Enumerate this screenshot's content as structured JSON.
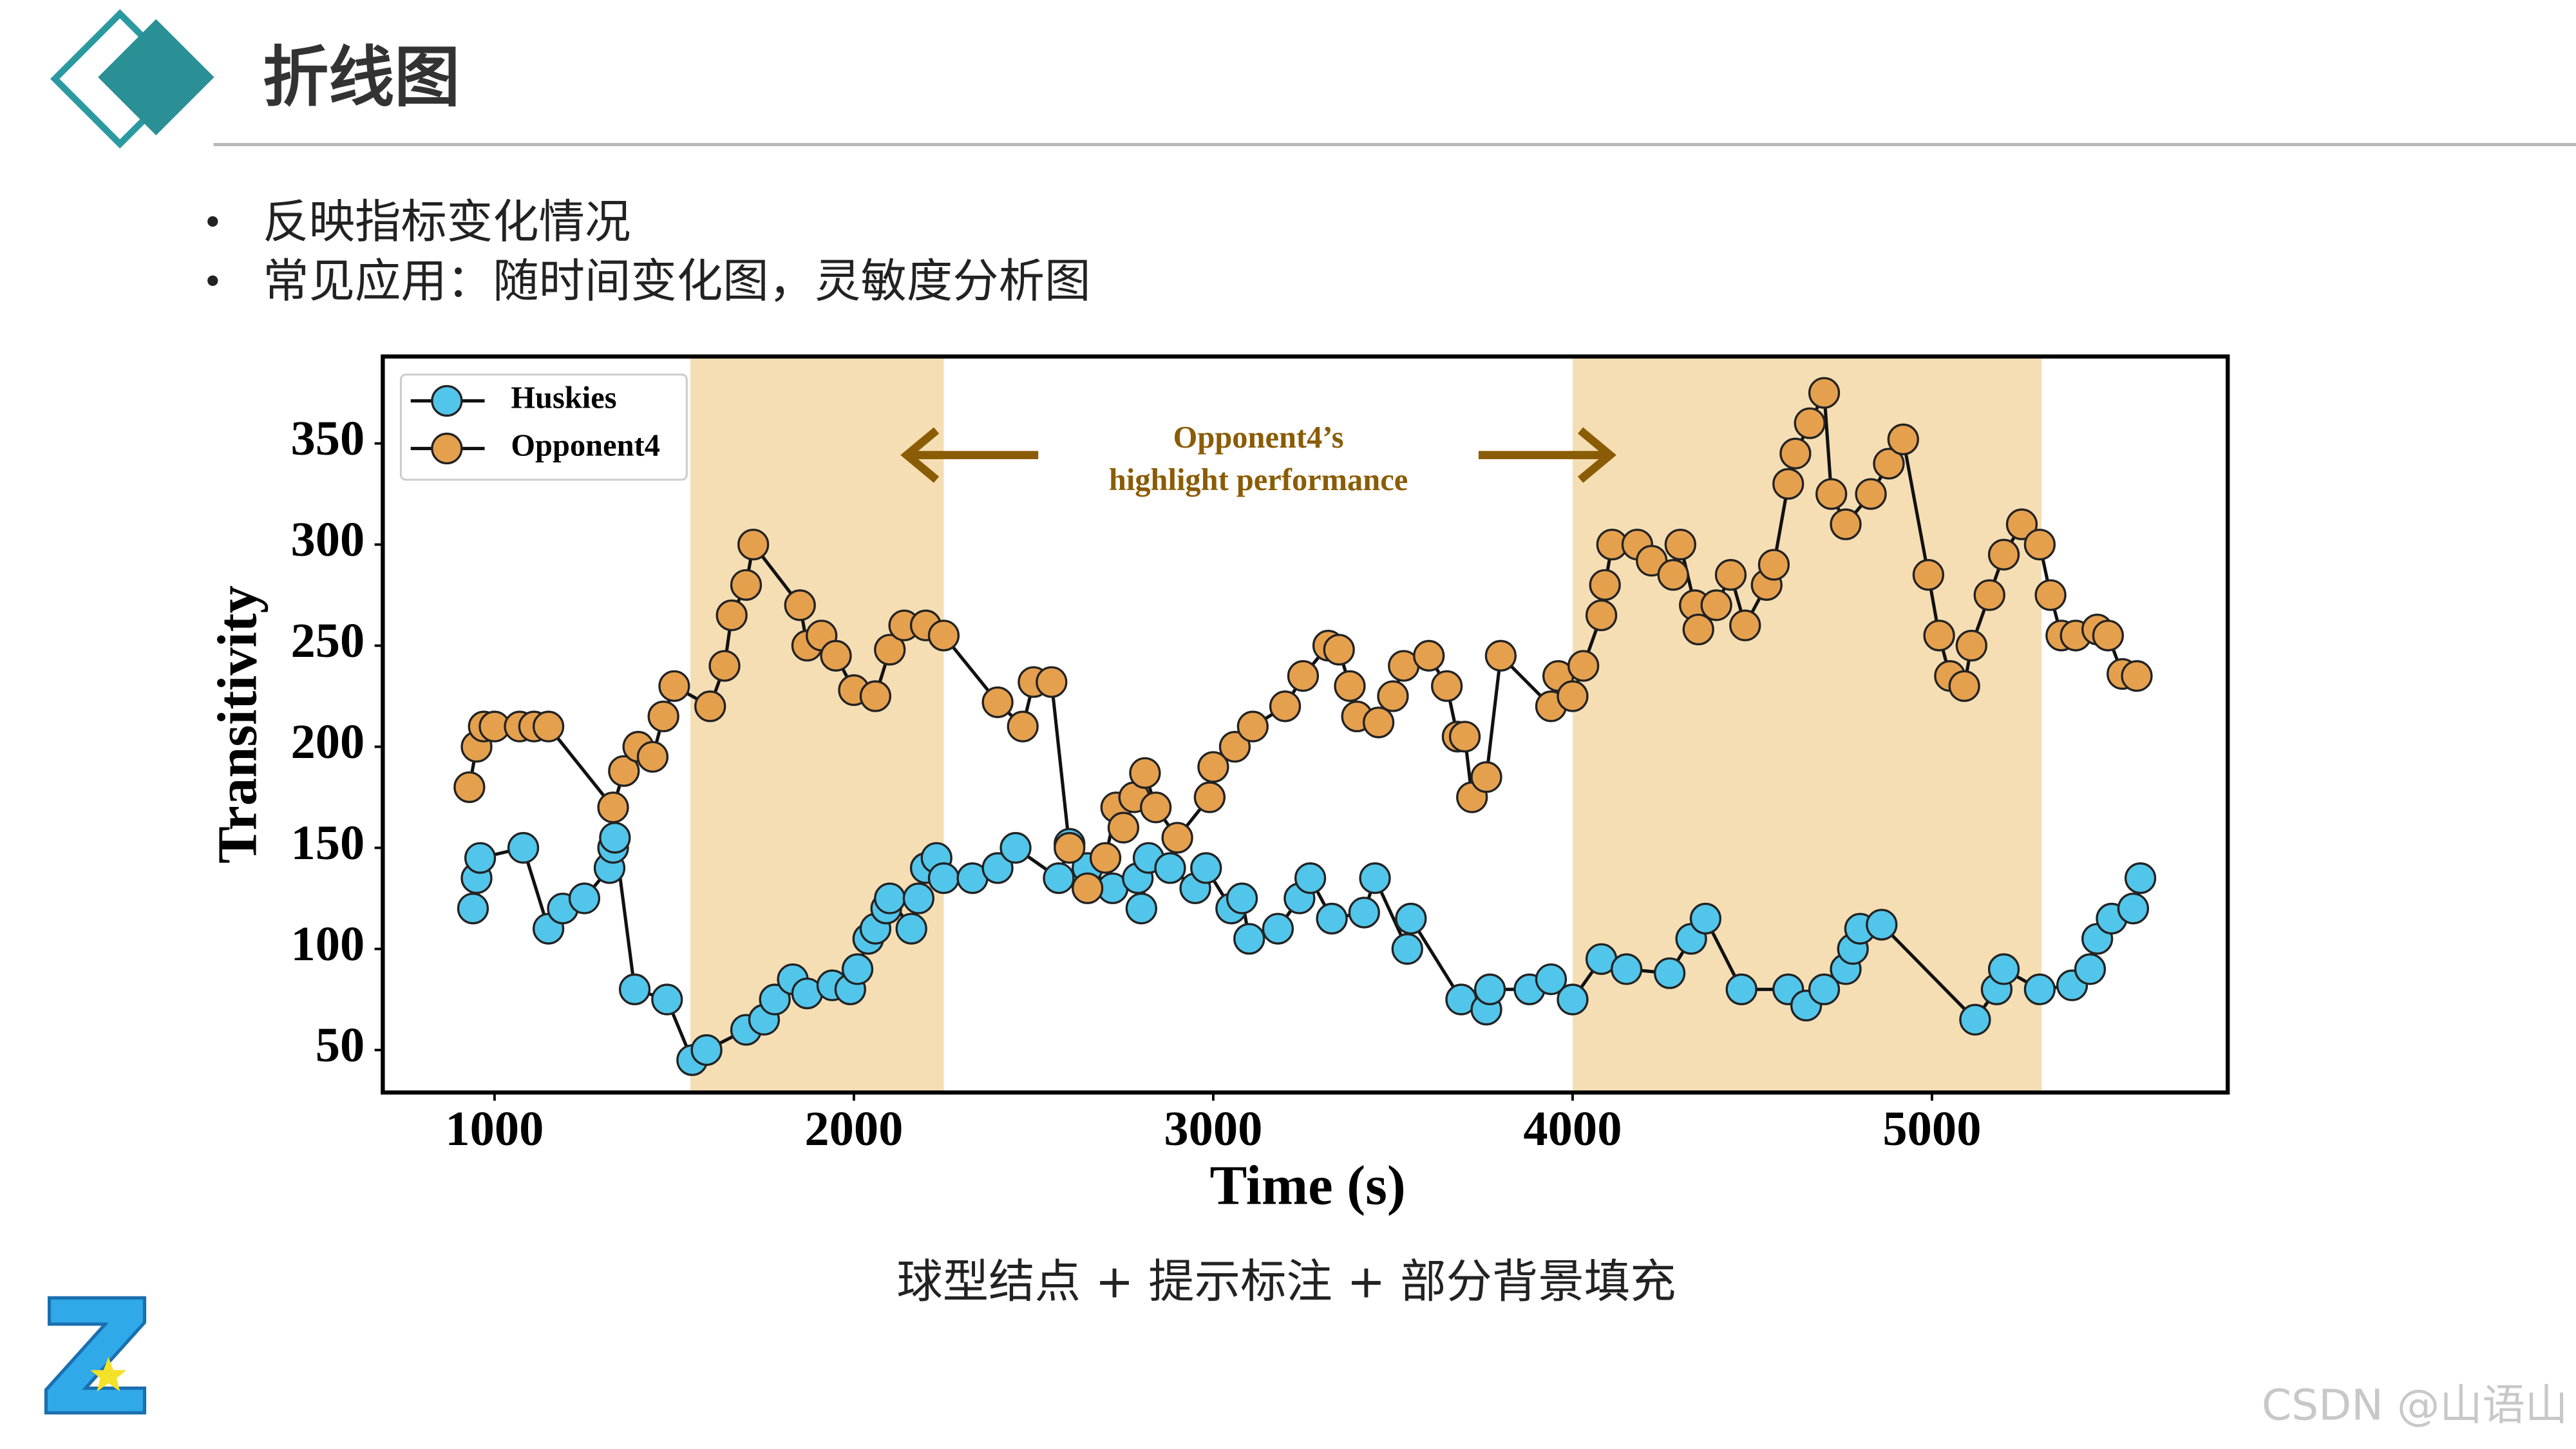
{
  "header": {
    "title": "折线图"
  },
  "bullets": [
    "反映指标变化情况",
    "常见应用：随时间变化图，灵敏度分析图"
  ],
  "chart_data": {
    "type": "line",
    "xlabel": "Time (s)",
    "ylabel": "Transitivity",
    "xlim": [
      689,
      5823
    ],
    "ylim": [
      29,
      393
    ],
    "xticks": [
      1000,
      2000,
      3000,
      4000,
      5000
    ],
    "yticks": [
      50,
      100,
      150,
      200,
      250,
      300,
      350
    ],
    "legend": "upper left",
    "shaded_spans": [
      [
        1545,
        2250
      ],
      [
        4000,
        5305
      ]
    ],
    "span_color": "#f5deb4",
    "annotation": [
      "Opponent4’s",
      "highlight performance"
    ],
    "annotation_color": "#8a5c05",
    "series": [
      {
        "name": "Huskies",
        "color": "#52c5ea",
        "x": [
          940,
          950,
          960,
          1080,
          1150,
          1190,
          1250,
          1320,
          1330,
          1335,
          1390,
          1480,
          1550,
          1590,
          1700,
          1750,
          1780,
          1830,
          1870,
          1940,
          1990,
          2010,
          2040,
          2060,
          2090,
          2100,
          2160,
          2180,
          2200,
          2230,
          2250,
          2330,
          2400,
          2450,
          2570,
          2600,
          2650,
          2720,
          2790,
          2800,
          2820,
          2880,
          2950,
          2980,
          3050,
          3080,
          3100,
          3180,
          3240,
          3270,
          3330,
          3420,
          3450,
          3540,
          3550,
          3690,
          3760,
          3770,
          3880,
          3940,
          4000,
          4080,
          4150,
          4270,
          4330,
          4370,
          4470,
          4600,
          4650,
          4700,
          4760,
          4780,
          4800,
          4860,
          5120,
          5180,
          5200,
          5300,
          5390,
          5440,
          5460,
          5500,
          5560,
          5580
        ],
        "values": [
          120,
          135,
          145,
          150,
          110,
          120,
          125,
          140,
          150,
          155,
          80,
          75,
          45,
          50,
          60,
          65,
          75,
          85,
          78,
          82,
          80,
          90,
          105,
          110,
          120,
          125,
          110,
          125,
          140,
          145,
          135,
          135,
          140,
          150,
          135,
          152,
          140,
          130,
          135,
          120,
          145,
          140,
          130,
          140,
          120,
          125,
          105,
          110,
          125,
          135,
          115,
          118,
          135,
          100,
          115,
          75,
          70,
          80,
          80,
          85,
          75,
          95,
          90,
          88,
          105,
          115,
          80,
          80,
          72,
          80,
          90,
          100,
          110,
          112,
          65,
          80,
          90,
          80,
          82,
          90,
          105,
          115,
          120,
          135
        ]
      },
      {
        "name": "Opponent4",
        "color": "#e5a04e",
        "x": [
          930,
          950,
          970,
          1000,
          1070,
          1110,
          1150,
          1330,
          1360,
          1400,
          1440,
          1470,
          1500,
          1600,
          1640,
          1660,
          1700,
          1720,
          1850,
          1870,
          1910,
          1950,
          2000,
          2060,
          2100,
          2140,
          2200,
          2250,
          2400,
          2470,
          2500,
          2550,
          2600,
          2650,
          2700,
          2730,
          2750,
          2780,
          2810,
          2840,
          2900,
          2990,
          3000,
          3060,
          3110,
          3200,
          3250,
          3320,
          3350,
          3380,
          3400,
          3460,
          3500,
          3530,
          3600,
          3650,
          3680,
          3700,
          3720,
          3760,
          3800,
          3940,
          3960,
          4000,
          4030,
          4080,
          4090,
          4110,
          4180,
          4220,
          4280,
          4300,
          4340,
          4350,
          4400,
          4440,
          4480,
          4540,
          4560,
          4600,
          4620,
          4660,
          4700,
          4720,
          4760,
          4830,
          4880,
          4920,
          4990,
          5020,
          5050,
          5090,
          5110,
          5160,
          5200,
          5250,
          5300,
          5330,
          5360,
          5400,
          5460,
          5490,
          5530,
          5570
        ],
        "values": [
          180,
          200,
          210,
          210,
          210,
          210,
          210,
          170,
          188,
          200,
          195,
          215,
          230,
          220,
          240,
          265,
          280,
          300,
          270,
          250,
          255,
          245,
          228,
          225,
          248,
          260,
          260,
          255,
          222,
          210,
          232,
          232,
          150,
          130,
          145,
          170,
          160,
          175,
          187,
          170,
          155,
          175,
          190,
          200,
          210,
          220,
          235,
          250,
          248,
          230,
          215,
          212,
          225,
          240,
          245,
          230,
          205,
          205,
          175,
          185,
          245,
          220,
          235,
          225,
          240,
          265,
          280,
          300,
          300,
          292,
          285,
          300,
          270,
          258,
          270,
          285,
          260,
          280,
          290,
          330,
          345,
          360,
          375,
          325,
          310,
          325,
          340,
          352,
          285,
          255,
          235,
          230,
          250,
          275,
          295,
          310,
          300,
          275,
          255,
          255,
          258,
          255,
          236,
          235
        ]
      }
    ]
  },
  "caption": "球型结点 + 提示标注 + 部分背景填充",
  "watermark": "CSDN @山语山"
}
